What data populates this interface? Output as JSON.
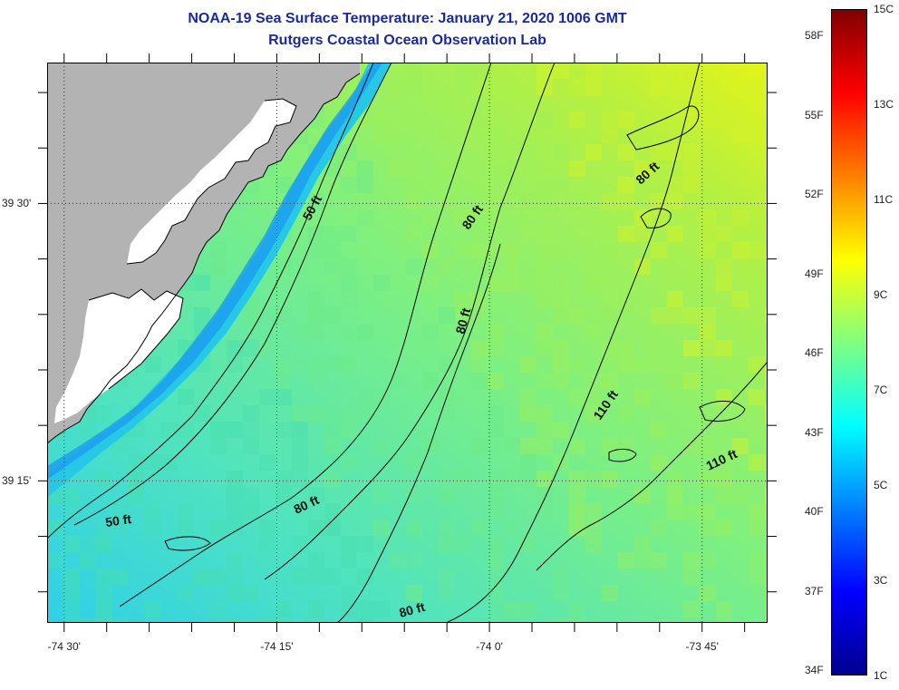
{
  "header": {
    "title": "NOAA-19 Sea Surface Temperature:  January 21, 2020 1006 GMT",
    "subtitle": "Rutgers Coastal Ocean Observation Lab"
  },
  "axes": {
    "lon_ticks": [
      {
        "label": "-74 30'",
        "deg": -74.5
      },
      {
        "label": "-74 15'",
        "deg": -74.25
      },
      {
        "label": "-74 0'",
        "deg": -74.0
      },
      {
        "label": "-73 45'",
        "deg": -73.75
      }
    ],
    "lat_ticks": [
      {
        "label": "39 30'",
        "deg": 39.5
      },
      {
        "label": "39 15'",
        "deg": 39.25
      }
    ]
  },
  "colorbar": {
    "fahrenheit_labels": [
      "34F",
      "37F",
      "40F",
      "43F",
      "46F",
      "49F",
      "52F",
      "55F",
      "58F"
    ],
    "fahrenheit_values": [
      34,
      37,
      40,
      43,
      46,
      49,
      52,
      55,
      58
    ],
    "celsius_labels": [
      "1C",
      "3C",
      "5C",
      "7C",
      "9C",
      "11C",
      "13C",
      "15C"
    ],
    "celsius_values": [
      1,
      3,
      5,
      7,
      9,
      11,
      13,
      15
    ],
    "range_c": [
      1,
      15
    ],
    "colors": [
      "#00008f",
      "#0000ff",
      "#0080ff",
      "#00ffff",
      "#80ff80",
      "#ffff00",
      "#ff8000",
      "#ff0000",
      "#800000"
    ]
  },
  "contour_labels": [
    {
      "text": "50 ft",
      "angle": -62
    },
    {
      "text": "50 ft",
      "angle": -8
    },
    {
      "text": "80 ft",
      "angle": -55
    },
    {
      "text": "80 ft",
      "angle": -75
    },
    {
      "text": "80 ft",
      "angle": -42
    },
    {
      "text": "80 ft",
      "angle": -25
    },
    {
      "text": "80 ft",
      "angle": -15
    },
    {
      "text": "110 ft",
      "angle": -55
    },
    {
      "text": "110 ft",
      "angle": -25
    }
  ],
  "map": {
    "land_color": "#b3b3b3",
    "marsh_color": "#ffffff",
    "grid_style": "dotted"
  }
}
